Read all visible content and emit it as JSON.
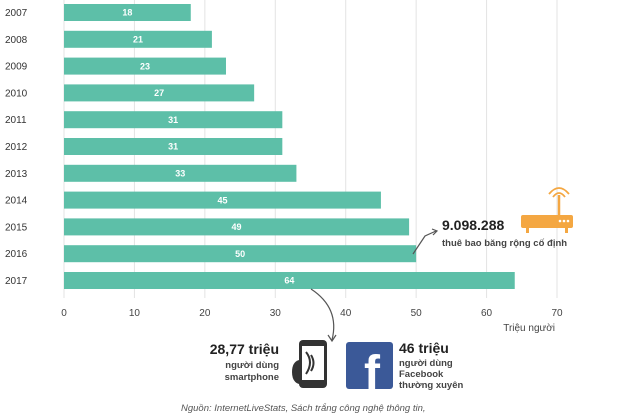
{
  "chart_data": {
    "type": "bar",
    "orientation": "horizontal",
    "categories": [
      "2007",
      "2008",
      "2009",
      "2010",
      "2011",
      "2012",
      "2013",
      "2014",
      "2015",
      "2016",
      "2017"
    ],
    "values": [
      18,
      21,
      23,
      27,
      31,
      31,
      33,
      45,
      49,
      50,
      64
    ],
    "xlabel": "Triệu người",
    "xlim": [
      0,
      70
    ],
    "xticks": [
      "0",
      "10",
      "20",
      "30",
      "40",
      "50",
      "60",
      "70"
    ],
    "grid": true,
    "bar_color": "#5dbfa8",
    "annotations": {
      "broadband": {
        "value": "9.098.288",
        "text": "thuê bao băng rộng cố định",
        "color": "#f4a742"
      },
      "smartphone": {
        "value": "28,77 triệu",
        "line1": "người dùng",
        "line2": "smartphone"
      },
      "facebook": {
        "value": "46 triệu",
        "line1": "người dùng",
        "line2": "Facebook",
        "line3": "thường xuyên",
        "brand_color": "#3b5998",
        "letter": "f"
      }
    }
  },
  "source": "Nguồn:  InternetLiveStats, Sách trắng công nghệ thông tin,"
}
